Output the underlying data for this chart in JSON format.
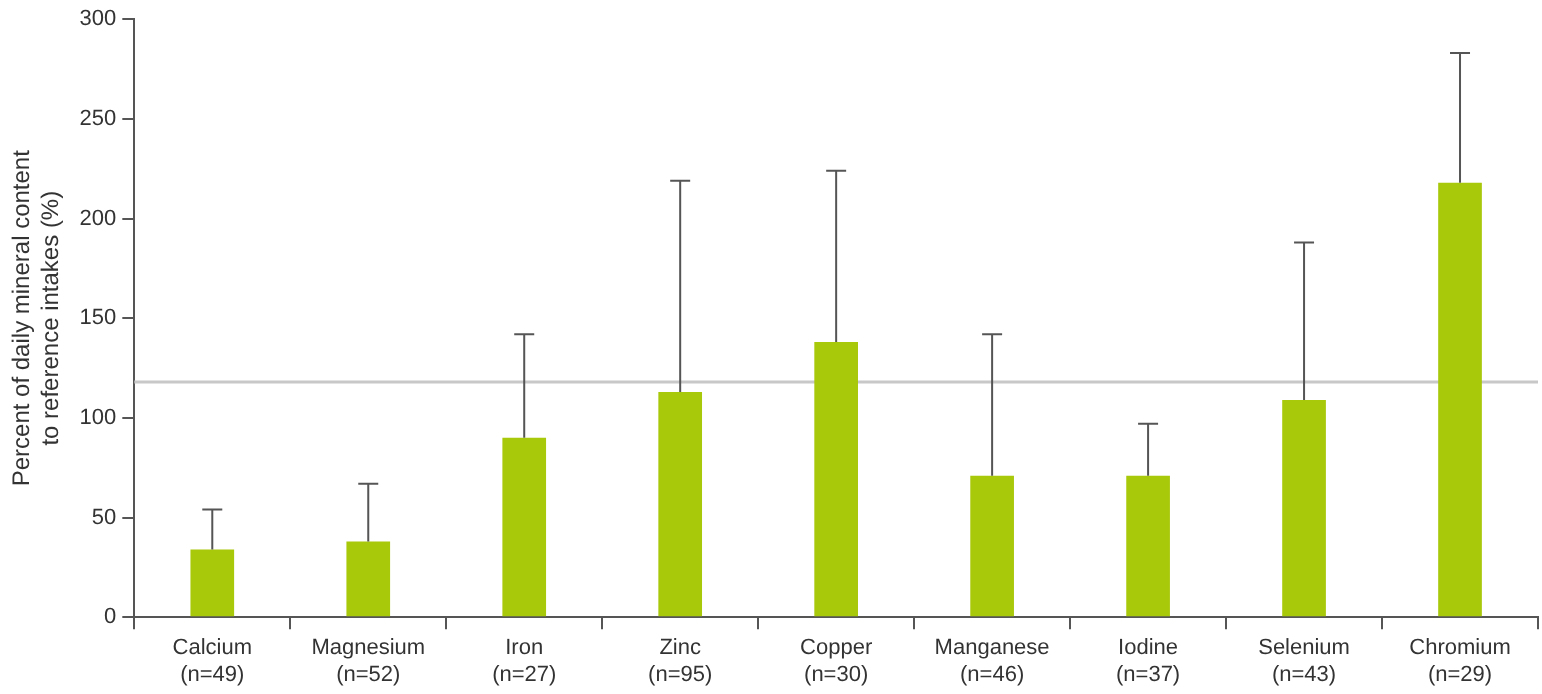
{
  "chart_data": {
    "type": "bar",
    "ylabel": "Percent of daily mineral content to reference intakes (%)",
    "categories": [
      "Calcium (n=49)",
      "Magnesium (n=52)",
      "Iron (n=27)",
      "Zinc (n=95)",
      "Copper (n=30)",
      "Manganese (n=46)",
      "Iodine (n=37)",
      "Selenium (n=43)",
      "Chromium (n=29)"
    ],
    "values": [
      34,
      38,
      90,
      113,
      138,
      71,
      71,
      109,
      218
    ],
    "errors": [
      [
        34,
        54
      ],
      [
        38,
        67
      ],
      [
        90,
        142
      ],
      [
        113,
        219
      ],
      [
        138,
        224
      ],
      [
        71,
        142
      ],
      [
        71,
        97
      ],
      [
        109,
        188
      ],
      [
        218,
        283
      ]
    ],
    "color": "#a8c80a",
    "ylim": [
      0,
      300
    ],
    "yticks": [
      0,
      50,
      100,
      150,
      200,
      250,
      300
    ],
    "ref_lines": [
      {
        "axis": "y",
        "value": 118,
        "color": "#c8c8c8"
      }
    ],
    "grid": false,
    "legend": false
  }
}
